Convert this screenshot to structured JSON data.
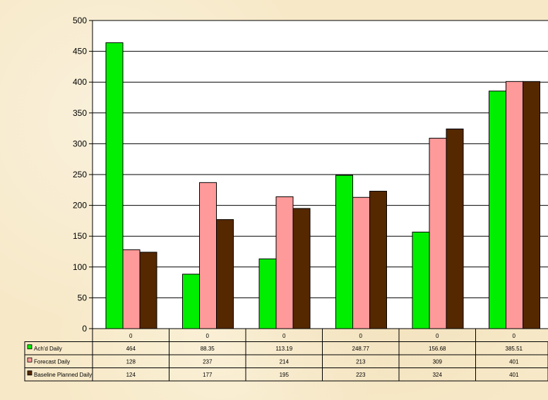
{
  "chart_data": {
    "type": "bar",
    "title": "",
    "xlabel": "",
    "ylabel": "",
    "ylim": [
      0,
      500
    ],
    "yticks": [
      0,
      50,
      100,
      150,
      200,
      250,
      300,
      350,
      400,
      450,
      500
    ],
    "grid": true,
    "legend": "data-table-left",
    "categories": [
      "0",
      "0",
      "0",
      "0",
      "0",
      "0"
    ],
    "series": [
      {
        "name": "Ach'd Daily",
        "color": "#00ee00",
        "values": [
          464,
          88.35,
          113.19,
          248.77,
          156.68,
          385.51
        ],
        "labels": [
          "464",
          "88.35",
          "113.19",
          "248.77",
          "156.68",
          "385.51"
        ]
      },
      {
        "name": "Forecast Daily",
        "color": "#ff9a9a",
        "values": [
          128,
          237,
          214,
          213,
          309,
          401
        ],
        "labels": [
          "128",
          "237",
          "214",
          "213",
          "309",
          "401"
        ]
      },
      {
        "name": "Baseline Planned Daily",
        "color": "#552800",
        "values": [
          124,
          177,
          195,
          223,
          324,
          401
        ],
        "labels": [
          "124",
          "177",
          "195",
          "223",
          "324",
          "401"
        ]
      }
    ]
  }
}
